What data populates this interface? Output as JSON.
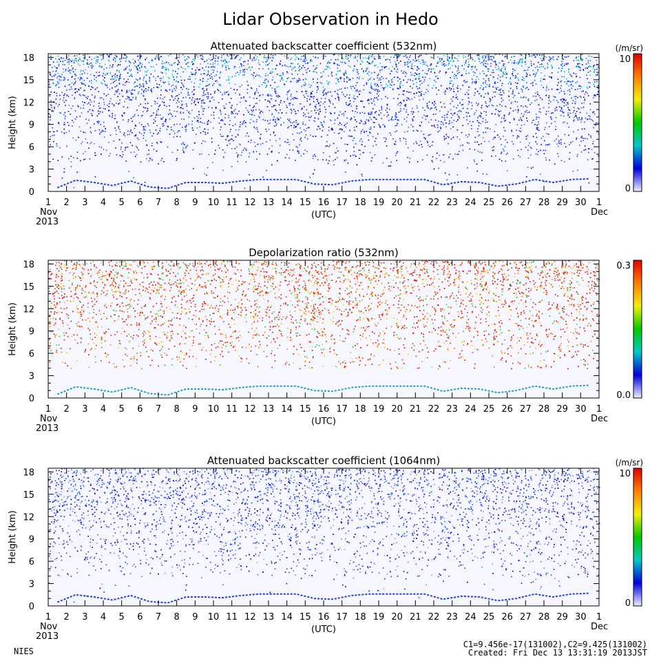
{
  "title": "Lidar Observation in Hedo",
  "footer": {
    "left": "NIES",
    "calib": "C1=9.456e-17(131002),C2=9.425(131002)",
    "created": "Created: Fri Dec 13 13:31:19 2013JST"
  },
  "chart_data": [
    {
      "type": "heatmap",
      "title": "Attenuated backscatter coefficient (532nm)",
      "ylabel": "Height (km)",
      "xlabel": "(UTC)",
      "x_ticks": [
        "1",
        "2",
        "3",
        "4",
        "5",
        "6",
        "7",
        "8",
        "9",
        "10",
        "11",
        "12",
        "13",
        "14",
        "15",
        "16",
        "17",
        "18",
        "19",
        "20",
        "21",
        "22",
        "23",
        "24",
        "25",
        "26",
        "27",
        "28",
        "29",
        "30",
        "1"
      ],
      "x_start_label": [
        "Nov",
        "2013"
      ],
      "x_end_label": "Dec",
      "y_ticks": [
        "0",
        "3",
        "6",
        "9",
        "12",
        "15",
        "18"
      ],
      "ylim": [
        0,
        18.5
      ],
      "colorbar": {
        "unit": "(/m/sr)",
        "max_label": "10",
        "min_label": "0",
        "colors": [
          "#f0f0ff",
          "#0000dd",
          "#00c8c8",
          "#00c800",
          "#f0f000",
          "#ff8000",
          "#e00000"
        ]
      },
      "ground_layer_km": [
        0.5,
        1.5,
        1.2,
        0.8,
        1.4,
        0.6,
        0.4,
        1.2,
        1.2,
        1.1,
        1.4,
        1.6,
        1.6,
        1.6,
        1.0,
        0.9,
        1.4,
        1.6,
        1.6,
        1.6,
        1.6,
        0.9,
        1.3,
        1.2,
        0.7,
        1.0,
        1.6,
        1.2,
        1.6,
        1.7
      ],
      "noise_color": "#1e3cf0"
    },
    {
      "type": "heatmap",
      "title": "Depolarization ratio (532nm)",
      "ylabel": "Height (km)",
      "xlabel": "(UTC)",
      "x_ticks": [
        "1",
        "2",
        "3",
        "4",
        "5",
        "6",
        "7",
        "8",
        "9",
        "10",
        "11",
        "12",
        "13",
        "14",
        "15",
        "16",
        "17",
        "18",
        "19",
        "20",
        "21",
        "22",
        "23",
        "24",
        "25",
        "26",
        "27",
        "28",
        "29",
        "30",
        "1"
      ],
      "x_start_label": [
        "Nov",
        "2013"
      ],
      "x_end_label": "Dec",
      "y_ticks": [
        "0",
        "3",
        "6",
        "9",
        "12",
        "15",
        "18"
      ],
      "ylim": [
        0,
        18.5
      ],
      "colorbar": {
        "unit": "",
        "max_label": "0.3",
        "min_label": "0.0",
        "colors": [
          "#f0f0ff",
          "#0000dd",
          "#00c8c8",
          "#00c800",
          "#f0f000",
          "#ff8000",
          "#e00000"
        ]
      },
      "ground_layer_km": [
        0.5,
        1.5,
        1.2,
        0.8,
        1.4,
        0.6,
        0.4,
        1.2,
        1.2,
        1.1,
        1.4,
        1.6,
        1.6,
        1.6,
        1.0,
        0.9,
        1.4,
        1.6,
        1.6,
        1.6,
        1.6,
        0.9,
        1.3,
        1.2,
        0.7,
        1.0,
        1.6,
        1.2,
        1.6,
        1.7
      ],
      "noise_color": "#e02000"
    },
    {
      "type": "heatmap",
      "title": "Attenuated backscatter coefficient (1064nm)",
      "ylabel": "Height (km)",
      "xlabel": "(UTC)",
      "x_ticks": [
        "1",
        "2",
        "3",
        "4",
        "5",
        "6",
        "7",
        "8",
        "9",
        "10",
        "11",
        "12",
        "13",
        "14",
        "15",
        "16",
        "17",
        "18",
        "19",
        "20",
        "21",
        "22",
        "23",
        "24",
        "25",
        "26",
        "27",
        "28",
        "29",
        "30",
        "1"
      ],
      "x_start_label": [
        "Nov",
        "2013"
      ],
      "x_end_label": "Dec",
      "y_ticks": [
        "0",
        "3",
        "6",
        "9",
        "12",
        "15",
        "18"
      ],
      "ylim": [
        0,
        18.5
      ],
      "colorbar": {
        "unit": "(/m/sr)",
        "max_label": "10",
        "min_label": "0",
        "colors": [
          "#f0f0ff",
          "#0000dd",
          "#00c8c8",
          "#00c800",
          "#f0f000",
          "#ff8000",
          "#e00000"
        ]
      },
      "ground_layer_km": [
        0.5,
        1.5,
        1.2,
        0.8,
        1.4,
        0.6,
        0.4,
        1.2,
        1.2,
        1.1,
        1.4,
        1.6,
        1.6,
        1.6,
        1.0,
        0.9,
        1.4,
        1.6,
        1.6,
        1.6,
        1.6,
        0.9,
        1.3,
        1.2,
        0.7,
        1.0,
        1.6,
        1.2,
        1.6,
        1.7
      ],
      "noise_color": "#2040e0"
    }
  ]
}
